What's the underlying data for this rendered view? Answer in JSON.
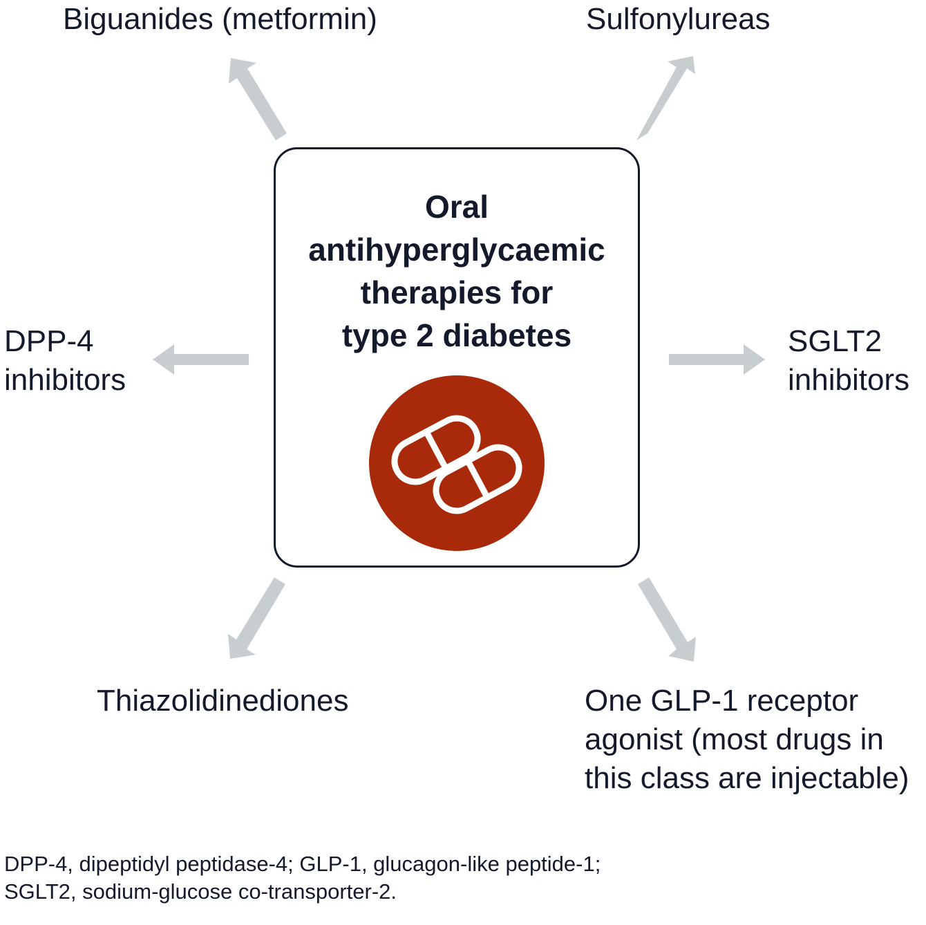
{
  "center": {
    "title_lines": [
      "Oral",
      "antihyperglycaemic",
      "therapies for",
      "type 2 diabetes"
    ],
    "icon": "pill-capsules-icon",
    "circle_color": "#a82a0a",
    "border_color": "#14192b"
  },
  "therapies": {
    "biguanides": "Biguanides (metformin)",
    "sulfonylureas": "Sulfonylureas",
    "dpp4": [
      "DPP-4",
      "inhibitors"
    ],
    "sglt2": [
      "SGLT2",
      "inhibitors"
    ],
    "thiazolidinediones": "Thiazolidinediones",
    "glp1": [
      "One GLP-1 receptor",
      "agonist (most drugs in",
      "this class are injectable)"
    ]
  },
  "arrow_color": "#c8cdd0",
  "footnote": [
    "DPP-4, dipeptidyl peptidase-4; GLP-1, glucagon-like peptide-1;",
    "SGLT2, sodium-glucose co-transporter-2."
  ]
}
